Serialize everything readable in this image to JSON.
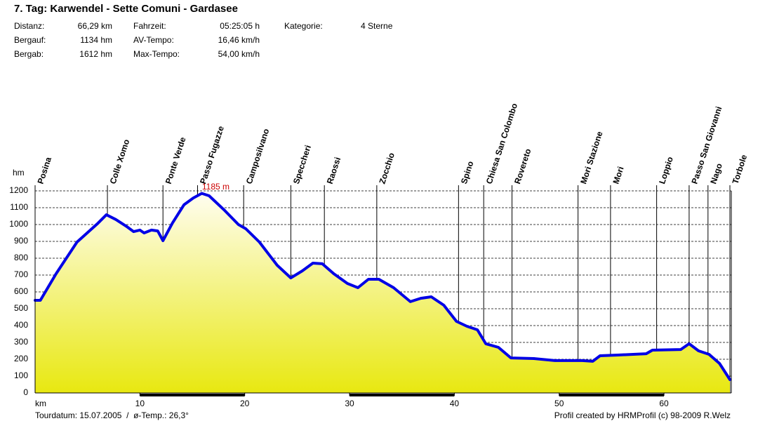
{
  "chart_data": {
    "type": "area",
    "title": "7. Tag: Karwendel - Sette Comuni - Gardasee",
    "stats": [
      [
        "Distanz:",
        "66,29 km",
        "Fahrzeit:",
        "05:25:05 h",
        "Kategorie:",
        "4 Sterne"
      ],
      [
        "Bergauf:",
        "1134 hm",
        "AV-Tempo:",
        "16,46 km/h"
      ],
      [
        "Bergab:",
        "1612 hm",
        "Max-Tempo:",
        "54,00 km/h"
      ]
    ],
    "ylabel": "hm",
    "xlabel": "km",
    "color": "#0000e6",
    "x": [
      0,
      0.5,
      2,
      4,
      6,
      6.8,
      7.7,
      8.7,
      9.4,
      10,
      10.4,
      11.1,
      11.7,
      12.2,
      13.1,
      14.2,
      15.1,
      15.9,
      16.6,
      18.1,
      19.4,
      20.1,
      21.4,
      23.1,
      24.4,
      25.5,
      26.5,
      27.4,
      28.5,
      29.8,
      30.8,
      31.8,
      32.8,
      34.2,
      35.8,
      36.8,
      37.8,
      39.0,
      40.2,
      41.2,
      42.2,
      43.0,
      44.2,
      45.4,
      47.6,
      49.6,
      52.2,
      53.2,
      53.9,
      55.6,
      58.3,
      58.9,
      61.6,
      62.4,
      63.3,
      64.3,
      65.3,
      66.29
    ],
    "values": [
      550,
      550,
      708,
      896,
      1008,
      1058,
      1030,
      990,
      958,
      967,
      950,
      967,
      962,
      904,
      1008,
      1117,
      1158,
      1185,
      1171,
      1083,
      1000,
      975,
      896,
      758,
      683,
      725,
      771,
      767,
      708,
      650,
      625,
      675,
      675,
      625,
      542,
      562,
      571,
      521,
      425,
      396,
      375,
      292,
      271,
      208,
      204,
      192,
      192,
      188,
      221,
      225,
      233,
      254,
      258,
      292,
      250,
      229,
      175,
      79
    ],
    "waypoints": {
      "labels": [
        "Posina",
        "Colle Xomo",
        "Ponte Verde",
        "Passo Fugazze",
        "Camposilvano",
        "Speccheri",
        "Raossi",
        "Zocchio",
        "Spino",
        "Chiesa San Colombo",
        "Rovereto",
        "Mori Stazione",
        "Mori",
        "Loppio",
        "Passo San Giovanni",
        "Nago",
        "Torbole"
      ],
      "km": [
        0,
        6.9,
        12.2,
        15.5,
        19.9,
        24.4,
        27.6,
        32.6,
        40.4,
        42.8,
        45.5,
        51.8,
        54.9,
        59.3,
        62.4,
        64.2,
        66.29
      ]
    },
    "annotations": [
      {
        "text": "1185 m",
        "x": 15.9,
        "y": 1185
      }
    ],
    "xlim": [
      0,
      66.29
    ],
    "xticks": [
      10,
      20,
      30,
      40,
      50,
      60
    ],
    "ylim": [
      0,
      1200
    ],
    "yticks": [
      0,
      100,
      200,
      300,
      400,
      500,
      600,
      700,
      800,
      900,
      1000,
      1100,
      1200
    ],
    "grid": true,
    "footer_left": "Tourdatum: 15.07.2005  /  ø-Temp.: 26,3°",
    "footer_right": "Profil created by HRMProfil (c) 98-2009 R.Welz"
  }
}
